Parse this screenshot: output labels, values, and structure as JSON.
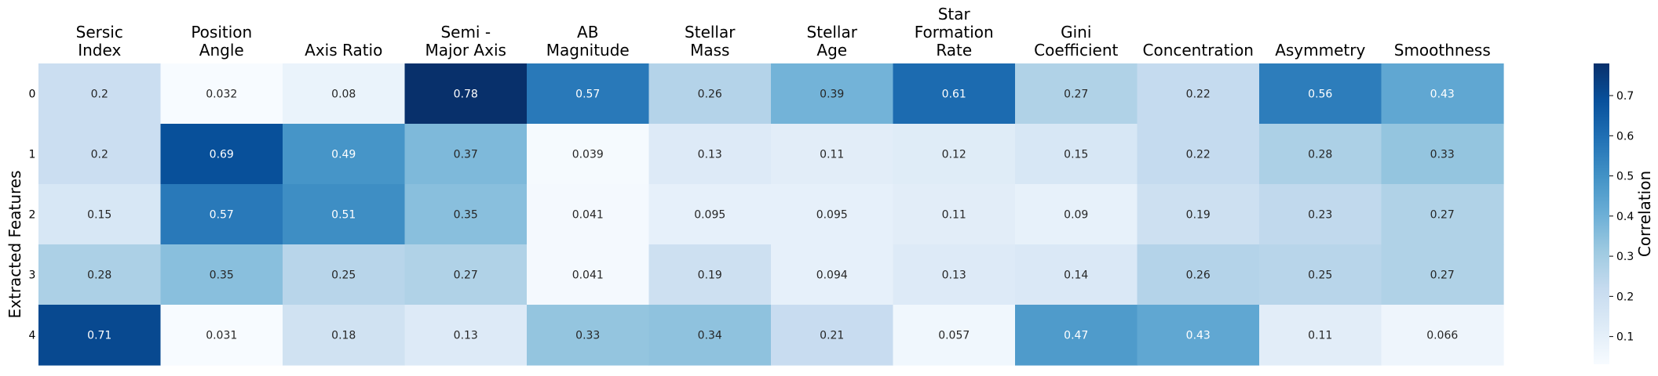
{
  "chart_data": {
    "type": "heatmap",
    "x_categories": [
      [
        "Sersic",
        "Index"
      ],
      [
        "Position",
        "Angle"
      ],
      [
        "Axis Ratio"
      ],
      [
        "Semi -",
        "Major Axis"
      ],
      [
        "AB",
        "Magnitude"
      ],
      [
        "Stellar",
        "Mass"
      ],
      [
        "Stellar",
        "Age"
      ],
      [
        "Star",
        "Formation",
        "Rate"
      ],
      [
        "Gini",
        "Coefficient"
      ],
      [
        "Concentration"
      ],
      [
        "Asymmetry"
      ],
      [
        "Smoothness"
      ]
    ],
    "y_categories": [
      "0",
      "1",
      "2",
      "3",
      "4"
    ],
    "ylabel": "Extracted Features",
    "xlabel": "",
    "title": "",
    "values": [
      [
        "0.2",
        "0.032",
        "0.08",
        "0.78",
        "0.57",
        "0.26",
        "0.39",
        "0.61",
        "0.27",
        "0.22",
        "0.56",
        "0.43"
      ],
      [
        "0.2",
        "0.69",
        "0.49",
        "0.37",
        "0.039",
        "0.13",
        "0.11",
        "0.12",
        "0.15",
        "0.22",
        "0.28",
        "0.33"
      ],
      [
        "0.15",
        "0.57",
        "0.51",
        "0.35",
        "0.041",
        "0.095",
        "0.095",
        "0.11",
        "0.09",
        "0.19",
        "0.23",
        "0.27"
      ],
      [
        "0.28",
        "0.35",
        "0.25",
        "0.27",
        "0.041",
        "0.19",
        "0.094",
        "0.13",
        "0.14",
        "0.26",
        "0.25",
        "0.27"
      ],
      [
        "0.71",
        "0.031",
        "0.18",
        "0.13",
        "0.33",
        "0.34",
        "0.21",
        "0.057",
        "0.47",
        "0.43",
        "0.11",
        "0.066"
      ]
    ],
    "colorbar": {
      "label": "Correlation",
      "range": [
        0.031,
        0.78
      ],
      "ticks": [
        "0.1",
        "0.2",
        "0.3",
        "0.4",
        "0.5",
        "0.6",
        "0.7"
      ]
    },
    "colormap": "Blues",
    "x_tick_position": "top",
    "grid": false
  }
}
